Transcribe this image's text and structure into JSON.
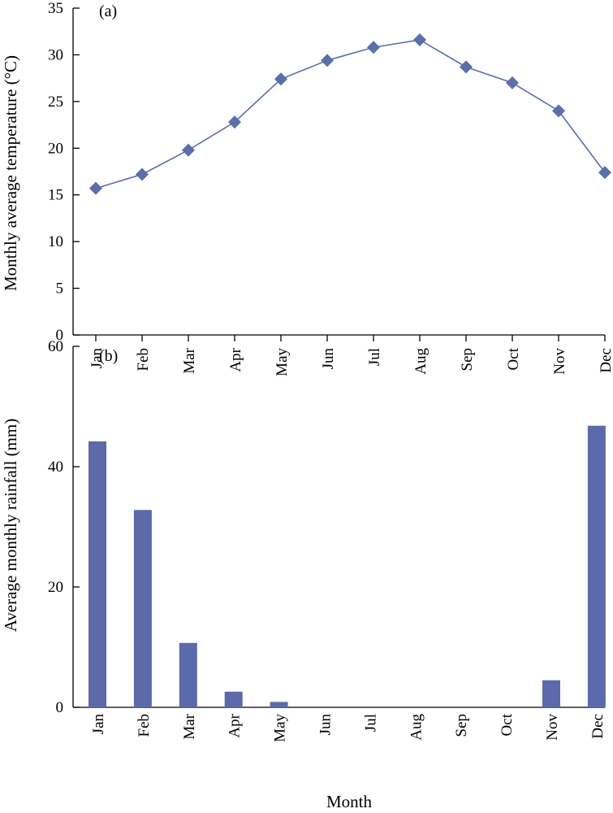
{
  "chart_data": [
    {
      "type": "line",
      "panel_label": "(a)",
      "title": "",
      "xlabel": "",
      "ylabel": "Monthly average temperature (°C)",
      "categories": [
        "Jan",
        "Feb",
        "Mar",
        "Apr",
        "May",
        "Jun",
        "Jul",
        "Aug",
        "Sep",
        "Oct",
        "Nov",
        "Dec"
      ],
      "series": [
        {
          "values": [
            15.7,
            17.2,
            19.8,
            22.8,
            27.4,
            29.4,
            30.8,
            31.6,
            28.7,
            27.0,
            24.0,
            17.4
          ]
        }
      ],
      "ylim": [
        0,
        35
      ],
      "yticks": [
        0,
        5,
        10,
        15,
        20,
        25,
        30,
        35
      ],
      "marker": "diamond",
      "color": "#5b6fa8",
      "grid": false,
      "legend": "none"
    },
    {
      "type": "bar",
      "panel_label": "(b)",
      "title": "",
      "xlabel": "Month",
      "ylabel": "Average monthly rainfall (mm)",
      "categories": [
        "Jan",
        "Feb",
        "Mar",
        "Apr",
        "May",
        "Jun",
        "Jul",
        "Aug",
        "Sep",
        "Oct",
        "Nov",
        "Dec"
      ],
      "series": [
        {
          "values": [
            44.2,
            32.8,
            10.7,
            2.6,
            0.9,
            0,
            0,
            0,
            0,
            0,
            4.5,
            46.8
          ]
        }
      ],
      "ylim": [
        0,
        60
      ],
      "yticks": [
        0,
        20,
        40,
        60
      ],
      "color": "#5b6aaa",
      "grid": false,
      "legend": "none"
    }
  ]
}
